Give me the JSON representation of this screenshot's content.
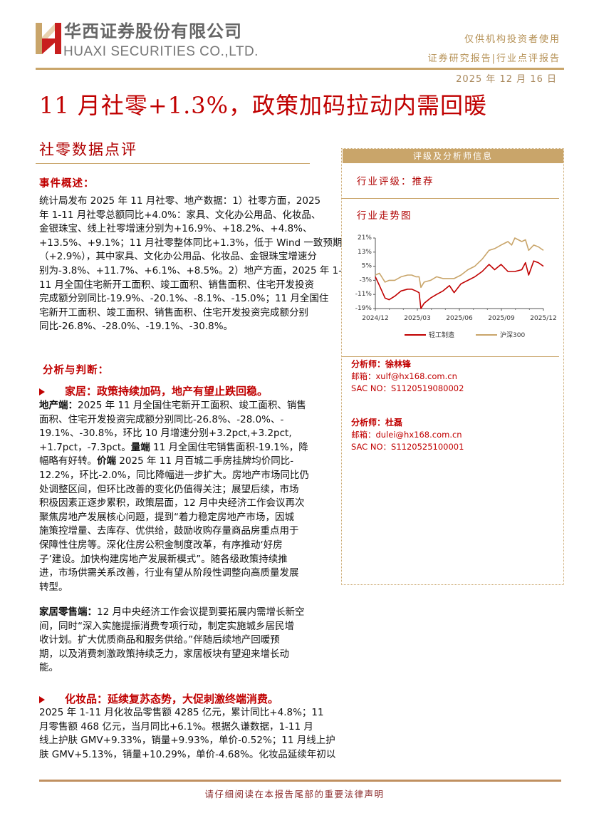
{
  "header": {
    "company_cn": "华西证券股份有限公司",
    "company_en": "HUAXI SECURITIES CO.,LTD.",
    "tag1": "仅供机构投资者使用",
    "tag2": "证券研究报告|行业点评报告",
    "date": "2025 年 12 月 16 日"
  },
  "title": "11 月社零+1.3%，政策加码拉动内需回暖",
  "subtitle": "社零数据点评",
  "event": {
    "heading": "事件概述：",
    "lines": [
      "统计局发布 2025 年 11 月社零、地产数据：1）社零方面，2025",
      "年 1-11 月社零总额同比+4.0%：家具、文化办公用品、化妆品、",
      "金银珠宝、线上社零增速分别为+16.9%、+18.2%、+4.8%、",
      "+13.5%、+9.1%；11 月社零整体同比+1.3%，低于 Wind 一致预期",
      "（+2.9%），其中家具、文化办公用品、化妆品、金银珠宝增速分",
      "别为-3.8%、+11.7%、+6.1%、+8.5%。2）地产方面，2025 年 1-",
      "11 月全国住宅新开工面积、竣工面积、销售面积、住宅开发投资",
      "完成额分别同比-19.9%、-20.1%、-8.1%、-15.0%；11 月全国住",
      "宅新开工面积、竣工面积、销售面积、住宅开发投资完成额分别",
      "同比-26.8%、-28.0%、-19.1%、-30.8%。"
    ]
  },
  "analysis": {
    "heading": "分析与判断：",
    "home": {
      "heading": "家居：政策持续加码，地产有望止跌回稳。",
      "property_label": "地产端：",
      "lines": [
        "2025 年 11 月全国住宅新开工面积、竣工面积、销售",
        "面积、住宅开发投资完成额分别同比-26.8%、-28.0%、-",
        "19.1%、-30.8%，环比 10 月增速分别+3.2pct,+3.2pct,",
        "+1.7pct，-7.3pct。",
        "11 月全国住宅销售面积-19.1%，降",
        "幅略有好转。",
        "2025 年 11 月百城二手房挂牌均价同比-",
        "12.2%，环比-2.0%，同比降幅进一步扩大。房地产市场同比仍",
        "处调整区间，但环比改善的变化仍值得关注；展望后续，市场",
        "积极因素正逐步累积，政策层面，12 月中央经济工作会议再次",
        "聚焦房地产发展核心问题，提到“着力稳定房地产市场，因城",
        "施策控增量、去库存、优供给，鼓励收购存量商品房重点用于",
        "保障性住房等。深化住房公积金制度改革，有序推动‘好房",
        "子’建设。加快构建房地产发展新模式”。随各级政策持续推",
        "进，市场供需关系改善，行业有望从阶段性调整向高质量发展",
        "转型。"
      ],
      "volume_label": "量端",
      "price_label": "价端",
      "retail_label": "家居零售端：",
      "retail_lines": [
        "12 月中央经济工作会议提到要拓展内需增长新空",
        "间，同时“深入实施提振消费专项行动，制定实施城乡居民增",
        "收计划。扩大优质商品和服务供给。”伴随后续地产回暖预",
        "期，以及消费刺激政策持续乏力，家居板块有望迎来增长动",
        "能。"
      ]
    },
    "cosmetics": {
      "heading": "化妆品：延续复苏态势，大促刺激终端消费。",
      "lines": [
        "2025 年 1-11 月化妆品零售额 4285 亿元，累计同比+4.8%；11",
        "月零售额 468 亿元，当月同比+6.1%。根据久谦数据，1-11 月",
        "线上护肤 GMV+9.33%，销量+9.93%，单价-0.52%；11 月线上护",
        "肤 GMV+5.13%，销量+10.29%，单价-4.68%。化妆品延续年初以"
      ]
    }
  },
  "sidebar": {
    "header": "评级及分析师信息",
    "rating_label": "行业评级：推荐",
    "trend_label": "行业走势图",
    "analysts": [
      {
        "name": "分析师：徐林锋",
        "email": "邮箱：xulf@hx168.com.cn",
        "sac": "SAC NO：S1120519080002"
      },
      {
        "name": "分析师：杜磊",
        "email": "邮箱：dulei@hx168.com.cn",
        "sac": "SAC NO：S1120525100001"
      }
    ]
  },
  "chart_data": {
    "type": "line",
    "x_ticks": [
      "2024/12",
      "2025/03",
      "2025/06",
      "2025/09",
      "2025/12"
    ],
    "y_ticks": [
      "21%",
      "13%",
      "5%",
      "-3%",
      "-11%",
      "-19%"
    ],
    "ylim": [
      -19,
      21
    ],
    "xlim": [
      "2024-12-16",
      "2025-12-16"
    ],
    "legend_position": "bottom",
    "series": [
      {
        "name": "轻工制造",
        "color": "#c00000",
        "x": [
          "2024-12-16",
          "2024-12-25",
          "2025-01-06",
          "2025-01-15",
          "2025-01-27",
          "2025-02-10",
          "2025-02-24",
          "2025-03-05",
          "2025-03-14",
          "2025-03-21",
          "2025-03-25",
          "2025-04-01",
          "2025-04-15",
          "2025-04-28",
          "2025-05-12",
          "2025-05-26",
          "2025-06-05",
          "2025-06-20",
          "2025-07-05",
          "2025-07-20",
          "2025-08-05",
          "2025-08-20",
          "2025-09-01",
          "2025-09-15",
          "2025-09-30",
          "2025-10-15",
          "2025-10-30",
          "2025-11-07",
          "2025-11-14",
          "2025-11-25",
          "2025-12-05",
          "2025-12-16"
        ],
        "values": [
          -1,
          -6,
          -13,
          -14,
          -12,
          -9,
          -8,
          -8,
          -9,
          -10,
          -19,
          -16,
          -13,
          -11,
          -9,
          -6,
          -10,
          -5,
          -3,
          -1,
          2,
          6,
          3,
          6,
          2,
          2,
          3,
          7,
          0,
          8,
          7,
          5
        ]
      },
      {
        "name": "沪深300",
        "color": "#c9a56a",
        "x": [
          "2024-12-16",
          "2024-12-25",
          "2025-01-06",
          "2025-01-15",
          "2025-01-27",
          "2025-02-10",
          "2025-02-24",
          "2025-03-05",
          "2025-03-14",
          "2025-03-21",
          "2025-03-25",
          "2025-04-01",
          "2025-04-15",
          "2025-04-28",
          "2025-05-12",
          "2025-05-26",
          "2025-06-05",
          "2025-06-20",
          "2025-07-05",
          "2025-07-20",
          "2025-08-05",
          "2025-08-20",
          "2025-09-01",
          "2025-09-15",
          "2025-09-30",
          "2025-10-08",
          "2025-10-15",
          "2025-10-30",
          "2025-11-07",
          "2025-11-14",
          "2025-11-25",
          "2025-12-05",
          "2025-12-16"
        ],
        "values": [
          0,
          1,
          -4,
          -3,
          -3,
          -1,
          0,
          0,
          -1,
          -1,
          -7,
          -4,
          -3,
          -1,
          -2,
          -2,
          -2,
          0,
          3,
          5,
          9,
          14,
          15,
          17,
          19,
          17,
          21,
          19,
          20,
          14,
          17,
          16,
          14
        ]
      }
    ]
  },
  "footer": "请仔细阅读在本报告尾部的重要法律声明"
}
